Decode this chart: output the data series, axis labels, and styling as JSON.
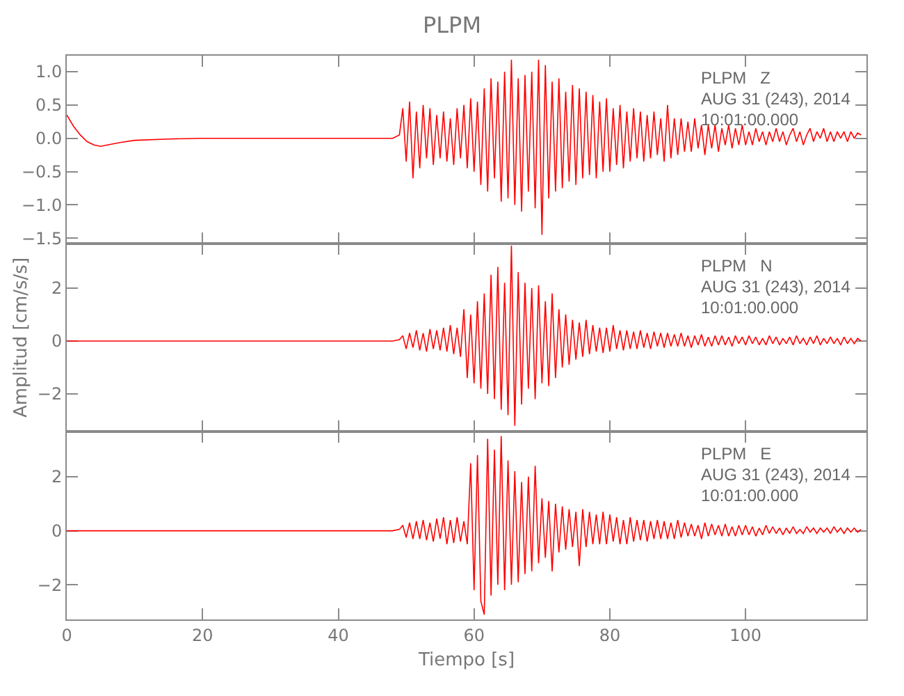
{
  "chart_data": [
    {
      "type": "line",
      "title": "PLPM",
      "annotations": [
        "PLPM   Z",
        "AUG 31 (243), 2014",
        "10:01:00.000"
      ],
      "tick_labels": "y",
      "grid": false,
      "xlim": [
        0,
        117.8
      ],
      "xticks": [
        0,
        20,
        40,
        60,
        80,
        100
      ],
      "ylim": [
        -1.58,
        1.24
      ],
      "yticks": [
        {
          "value": -1.5,
          "label": "−1.5"
        },
        {
          "value": -1,
          "label": "−1.0"
        },
        {
          "value": -0.5,
          "label": "−0.5"
        },
        {
          "value": 0,
          "label": "0.0"
        },
        {
          "value": 0.5,
          "label": "0.5"
        },
        {
          "value": 1,
          "label": "1.0"
        }
      ],
      "x": [
        0,
        1,
        2,
        3,
        4,
        5,
        6,
        8,
        10,
        15,
        20,
        25,
        30,
        35,
        40,
        45,
        48,
        49,
        49.5,
        50,
        50.5,
        51,
        51.5,
        52,
        52.5,
        53,
        53.5,
        54,
        54.5,
        55,
        55.5,
        56,
        56.5,
        57,
        57.5,
        58,
        58.5,
        59,
        59.5,
        60,
        60.5,
        61,
        61.5,
        62,
        62.5,
        63,
        63.5,
        64,
        64.5,
        65,
        65.5,
        66,
        66.5,
        67,
        67.5,
        68,
        68.5,
        69,
        69.5,
        70,
        70.5,
        71,
        71.5,
        72,
        72.5,
        73,
        73.5,
        74,
        74.5,
        75,
        75.5,
        76,
        76.5,
        77,
        77.5,
        78,
        78.5,
        79,
        79.5,
        80,
        80.5,
        81,
        81.5,
        82,
        82.5,
        83,
        83.5,
        84,
        84.5,
        85,
        85.5,
        86,
        86.5,
        87,
        87.5,
        88,
        88.5,
        89,
        89.5,
        90,
        90.5,
        91,
        91.5,
        92,
        92.5,
        93,
        93.5,
        94,
        94.5,
        95,
        95.5,
        96,
        96.5,
        97,
        97.5,
        98,
        98.5,
        99,
        99.5,
        100,
        100.5,
        101,
        101.5,
        102,
        102.5,
        103,
        103.5,
        104,
        104.5,
        105,
        105.5,
        106,
        106.5,
        107,
        107.5,
        108,
        108.5,
        109,
        109.5,
        110,
        110.5,
        111,
        111.5,
        112,
        112.5,
        113,
        113.5,
        114,
        114.5,
        115,
        115.5,
        116,
        116.5,
        117
      ],
      "series": [
        {
          "color": "#ff0000",
          "values": [
            0.35,
            0.18,
            0.05,
            -0.05,
            -0.1,
            -0.12,
            -0.1,
            -0.06,
            -0.03,
            -0.01,
            0,
            0,
            0,
            0,
            0,
            0,
            0,
            0.05,
            0.45,
            -0.35,
            0.55,
            -0.6,
            0.4,
            -0.45,
            0.5,
            -0.3,
            0.45,
            -0.4,
            0.35,
            -0.3,
            0.4,
            -0.35,
            0.3,
            -0.4,
            0.45,
            -0.3,
            0.5,
            -0.45,
            0.6,
            -0.5,
            0.55,
            -0.7,
            0.75,
            -0.8,
            0.9,
            -0.6,
            0.85,
            -0.95,
            1.0,
            -0.9,
            1.18,
            -1.0,
            0.9,
            -1.1,
            0.95,
            -0.8,
            1.0,
            -1.05,
            1.18,
            -1.45,
            1.1,
            -0.9,
            0.85,
            -0.8,
            0.9,
            -0.75,
            0.7,
            -0.65,
            0.8,
            -0.7,
            0.75,
            -0.6,
            0.7,
            -0.55,
            0.65,
            -0.6,
            0.55,
            -0.5,
            0.6,
            -0.5,
            0.45,
            -0.4,
            0.5,
            -0.45,
            0.4,
            -0.35,
            0.45,
            -0.3,
            0.4,
            -0.35,
            0.35,
            -0.3,
            0.4,
            -0.25,
            0.3,
            -0.35,
            0.5,
            -0.3,
            0.3,
            -0.25,
            0.3,
            -0.2,
            0.25,
            -0.2,
            0.3,
            -0.15,
            0.2,
            -0.25,
            0.2,
            -0.15,
            0.2,
            -0.2,
            0.15,
            -0.1,
            0.2,
            -0.15,
            0.15,
            -0.1,
            0.2,
            -0.1,
            0.1,
            -0.1,
            0.15,
            -0.05,
            0.1,
            -0.1,
            0.1,
            -0.05,
            0.15,
            -0.05,
            0.1,
            -0.1,
            0.05,
            0.15,
            -0.05,
            0.1,
            -0.1,
            0.05,
            0.15,
            -0.05,
            0.1,
            0.0,
            0.15,
            -0.05,
            0.1,
            -0.05,
            0.1,
            0.0,
            0.1,
            -0.05,
            0.1,
            0.0,
            0.08,
            0.05
          ]
        }
      ]
    },
    {
      "type": "line",
      "ylabel": "Amplitud [cm/s/s]",
      "annotations": [
        "PLPM   N",
        "AUG 31 (243), 2014",
        "10:01:00.000"
      ],
      "tick_labels": "y",
      "grid": false,
      "xlim": [
        0,
        117.8
      ],
      "xticks": [
        0,
        20,
        40,
        60,
        80,
        100
      ],
      "ylim": [
        -3.42,
        3.68
      ],
      "yticks": [
        {
          "value": -2,
          "label": "−2"
        },
        {
          "value": 0,
          "label": "0"
        },
        {
          "value": 2,
          "label": "2"
        }
      ],
      "x": [
        0,
        1,
        2,
        3,
        4,
        5,
        6,
        8,
        10,
        15,
        20,
        25,
        30,
        35,
        40,
        45,
        48,
        49,
        49.5,
        50,
        50.5,
        51,
        51.5,
        52,
        52.5,
        53,
        53.5,
        54,
        54.5,
        55,
        55.5,
        56,
        56.5,
        57,
        57.5,
        58,
        58.5,
        59,
        59.5,
        60,
        60.5,
        61,
        61.5,
        62,
        62.5,
        63,
        63.5,
        64,
        64.5,
        65,
        65.5,
        66,
        66.5,
        67,
        67.5,
        68,
        68.5,
        69,
        69.5,
        70,
        70.5,
        71,
        71.5,
        72,
        72.5,
        73,
        73.5,
        74,
        74.5,
        75,
        75.5,
        76,
        76.5,
        77,
        77.5,
        78,
        78.5,
        79,
        79.5,
        80,
        80.5,
        81,
        81.5,
        82,
        82.5,
        83,
        83.5,
        84,
        84.5,
        85,
        85.5,
        86,
        86.5,
        87,
        87.5,
        88,
        88.5,
        89,
        89.5,
        90,
        90.5,
        91,
        91.5,
        92,
        92.5,
        93,
        93.5,
        94,
        94.5,
        95,
        95.5,
        96,
        96.5,
        97,
        97.5,
        98,
        98.5,
        99,
        99.5,
        100,
        100.5,
        101,
        101.5,
        102,
        102.5,
        103,
        103.5,
        104,
        104.5,
        105,
        105.5,
        106,
        106.5,
        107,
        107.5,
        108,
        108.5,
        109,
        109.5,
        110,
        110.5,
        111,
        111.5,
        112,
        112.5,
        113,
        113.5,
        114,
        114.5,
        115,
        115.5,
        116,
        116.5,
        117
      ],
      "series": [
        {
          "color": "#ff0000",
          "values": [
            0,
            0,
            0,
            0,
            0,
            0,
            0,
            0,
            0,
            0,
            0,
            0,
            0,
            0,
            0,
            0,
            0,
            0.05,
            0.2,
            -0.3,
            0.3,
            -0.25,
            0.4,
            -0.35,
            0.3,
            -0.4,
            0.45,
            -0.3,
            0.4,
            -0.35,
            0.5,
            -0.4,
            0.6,
            -0.5,
            0.5,
            -0.6,
            1.2,
            -1.4,
            1.0,
            -1.6,
            1.5,
            -1.8,
            1.8,
            -2.0,
            2.5,
            -2.2,
            2.8,
            -2.6,
            2.2,
            -2.8,
            3.6,
            -3.2,
            2.6,
            -2.4,
            2.2,
            -1.8,
            2.0,
            -2.2,
            2.1,
            -1.6,
            1.5,
            -1.7,
            1.8,
            -1.4,
            1.2,
            -1.0,
            1.0,
            -0.9,
            0.8,
            -0.7,
            0.7,
            -0.6,
            0.8,
            -0.5,
            0.6,
            -0.4,
            0.5,
            -0.45,
            0.5,
            -0.4,
            0.6,
            -0.3,
            0.4,
            -0.35,
            0.4,
            -0.3,
            0.35,
            -0.3,
            0.4,
            -0.25,
            0.3,
            -0.3,
            0.35,
            -0.2,
            0.3,
            -0.25,
            0.3,
            -0.2,
            0.25,
            -0.2,
            0.3,
            -0.2,
            0.2,
            -0.25,
            0.2,
            -0.15,
            0.25,
            -0.2,
            0.15,
            -0.2,
            0.2,
            -0.15,
            0.2,
            -0.15,
            0.15,
            -0.2,
            0.2,
            -0.1,
            0.15,
            -0.15,
            0.2,
            -0.1,
            0.15,
            -0.15,
            0.1,
            -0.15,
            0.2,
            -0.1,
            0.15,
            -0.15,
            0.1,
            -0.1,
            0.15,
            -0.15,
            0.2,
            -0.1,
            0.1,
            -0.15,
            0.15,
            -0.1,
            0.2,
            -0.15,
            0.1,
            -0.1,
            0.15,
            -0.1,
            0.1,
            -0.15,
            0.15,
            -0.1,
            0.1,
            -0.1,
            0.1,
            0.0
          ]
        }
      ]
    },
    {
      "type": "line",
      "xlabel": "Tiempo [s]",
      "annotations": [
        "PLPM   E",
        "AUG 31 (243), 2014",
        "10:01:00.000"
      ],
      "grid": false,
      "xlim": [
        0,
        117.8
      ],
      "xticks": [
        0,
        20,
        40,
        60,
        80,
        100
      ],
      "ylim": [
        -3.28,
        3.67
      ],
      "yticks": [
        {
          "value": -2,
          "label": "−2"
        },
        {
          "value": 0,
          "label": "0"
        },
        {
          "value": 2,
          "label": "2"
        }
      ],
      "x": [
        0,
        1,
        2,
        3,
        4,
        5,
        6,
        8,
        10,
        15,
        20,
        25,
        30,
        35,
        40,
        45,
        48,
        49,
        49.5,
        50,
        50.5,
        51,
        51.5,
        52,
        52.5,
        53,
        53.5,
        54,
        54.5,
        55,
        55.5,
        56,
        56.5,
        57,
        57.5,
        58,
        58.5,
        59,
        59.5,
        60,
        60.5,
        61,
        61.5,
        62,
        62.5,
        63,
        63.5,
        64,
        64.5,
        65,
        65.5,
        66,
        66.5,
        67,
        67.5,
        68,
        68.5,
        69,
        69.5,
        70,
        70.5,
        71,
        71.5,
        72,
        72.5,
        73,
        73.5,
        74,
        74.5,
        75,
        75.5,
        76,
        76.5,
        77,
        77.5,
        78,
        78.5,
        79,
        79.5,
        80,
        80.5,
        81,
        81.5,
        82,
        82.5,
        83,
        83.5,
        84,
        84.5,
        85,
        85.5,
        86,
        86.5,
        87,
        87.5,
        88,
        88.5,
        89,
        89.5,
        90,
        90.5,
        91,
        91.5,
        92,
        92.5,
        93,
        93.5,
        94,
        94.5,
        95,
        95.5,
        96,
        96.5,
        97,
        97.5,
        98,
        98.5,
        99,
        99.5,
        100,
        100.5,
        101,
        101.5,
        102,
        102.5,
        103,
        103.5,
        104,
        104.5,
        105,
        105.5,
        106,
        106.5,
        107,
        107.5,
        108,
        108.5,
        109,
        109.5,
        110,
        110.5,
        111,
        111.5,
        112,
        112.5,
        113,
        113.5,
        114,
        114.5,
        115,
        115.5,
        116,
        116.5,
        117
      ],
      "series": [
        {
          "color": "#ff0000",
          "values": [
            0,
            0,
            0,
            0,
            0,
            0,
            0,
            0,
            0,
            0,
            0,
            0,
            0,
            0,
            0,
            0,
            0,
            0.05,
            0.2,
            -0.25,
            0.3,
            -0.3,
            0.35,
            -0.3,
            0.4,
            -0.35,
            0.3,
            -0.4,
            0.45,
            -0.3,
            0.5,
            -0.5,
            0.4,
            -0.45,
            0.5,
            -0.4,
            0.35,
            -0.5,
            2.5,
            -2.2,
            2.8,
            -2.6,
            -3.1,
            3.4,
            -2.4,
            3.0,
            -2.0,
            3.5,
            -2.2,
            2.6,
            -2.0,
            2.2,
            -1.9,
            1.8,
            -1.6,
            2.0,
            -1.5,
            2.4,
            -1.2,
            1.2,
            -1.0,
            1.1,
            -1.5,
            1.0,
            -0.8,
            0.9,
            -0.7,
            0.8,
            -0.6,
            0.7,
            -1.3,
            0.8,
            -0.6,
            0.7,
            -0.5,
            0.6,
            -0.5,
            0.7,
            -0.5,
            0.6,
            -0.4,
            0.5,
            -0.5,
            0.4,
            -0.5,
            0.5,
            -0.4,
            0.4,
            -0.35,
            0.4,
            -0.4,
            0.35,
            -0.3,
            0.4,
            -0.3,
            0.35,
            -0.3,
            0.3,
            -0.3,
            0.4,
            -0.25,
            0.3,
            -0.2,
            0.25,
            -0.2,
            0.2,
            -0.3,
            0.3,
            -0.2,
            0.25,
            -0.15,
            0.2,
            -0.2,
            0.25,
            -0.2,
            0.15,
            -0.2,
            0.2,
            -0.15,
            0.2,
            -0.15,
            0.15,
            -0.2,
            0.1,
            -0.15,
            0.2,
            -0.1,
            0.15,
            -0.1,
            0.1,
            -0.15,
            0.1,
            -0.1,
            0.15,
            -0.1,
            0.05,
            -0.1,
            0.15,
            -0.05,
            0.1,
            -0.1,
            0.1,
            -0.05,
            0.1,
            -0.1,
            0.15,
            -0.05,
            0.1,
            -0.1,
            0.1,
            -0.05,
            0.1,
            -0.05,
            0.05
          ]
        }
      ]
    }
  ]
}
